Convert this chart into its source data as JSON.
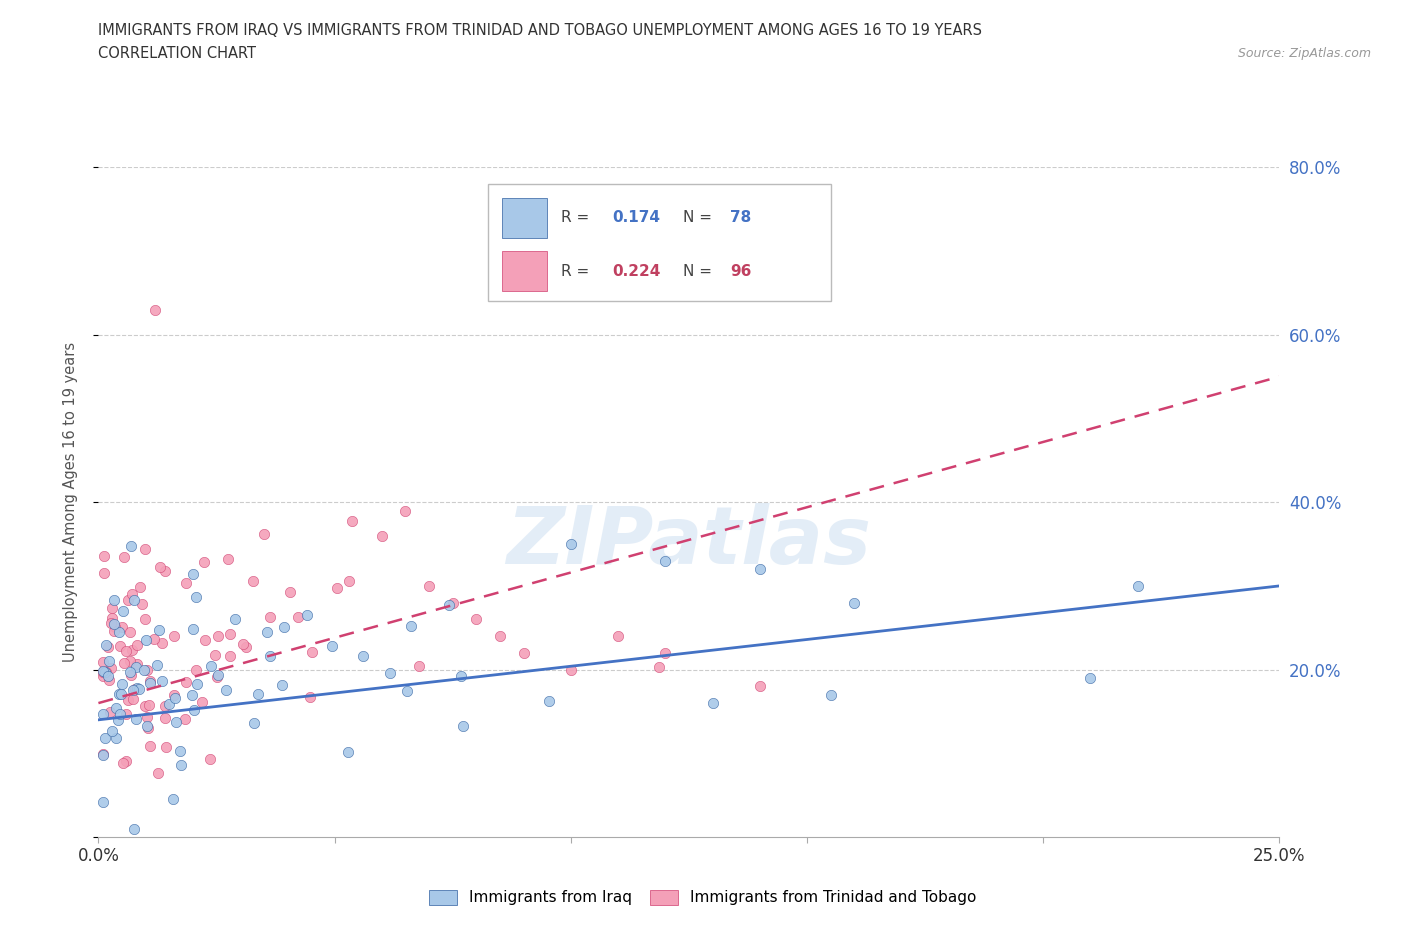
{
  "title_line1": "IMMIGRANTS FROM IRAQ VS IMMIGRANTS FROM TRINIDAD AND TOBAGO UNEMPLOYMENT AMONG AGES 16 TO 19 YEARS",
  "title_line2": "CORRELATION CHART",
  "source_text": "Source: ZipAtlas.com",
  "ylabel": "Unemployment Among Ages 16 to 19 years",
  "series1_label": "Immigrants from Iraq",
  "series2_label": "Immigrants from Trinidad and Tobago",
  "series1_color": "#A8C8E8",
  "series2_color": "#F4A0B8",
  "series1_R": "0.174",
  "series1_N": "78",
  "series2_R": "0.224",
  "series2_N": "96",
  "trend1_color": "#4472C4",
  "trend2_color": "#D04070",
  "xlim": [
    0.0,
    0.25
  ],
  "ylim": [
    0.0,
    0.8
  ],
  "watermark": "ZIPatlas",
  "legend_R1_color": "#4472C4",
  "legend_R2_color": "#C04060",
  "legend_N1_color": "#4472C4",
  "legend_N2_color": "#C04060"
}
